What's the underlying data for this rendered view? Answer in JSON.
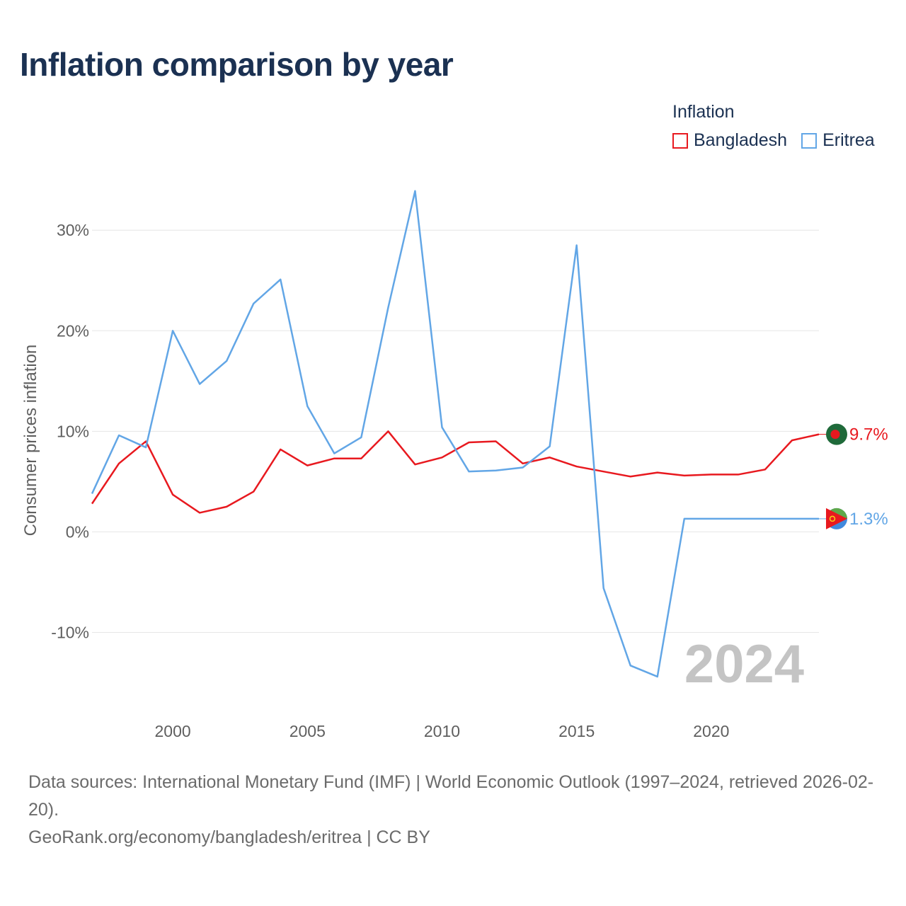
{
  "title": "Inflation comparison by year",
  "legend": {
    "title": "Inflation",
    "items": [
      {
        "label": "Bangladesh",
        "color": "#e8191f"
      },
      {
        "label": "Eritrea",
        "color": "#62a6e6"
      }
    ]
  },
  "footer": {
    "sources": "Data sources: International Monetary Fund (IMF) | World Economic Outlook (1997–2024, retrieved 2026-02-20).",
    "credit": "GeoRank.org/economy/bangladesh/eritrea | CC BY"
  },
  "chart_data": {
    "type": "line",
    "title": "Inflation comparison by year",
    "xlabel": "",
    "ylabel": "Consumer prices inflation",
    "year_label": "2024",
    "xlim": [
      1997,
      2024
    ],
    "ylim": [
      -17.5,
      36
    ],
    "x_ticks": [
      2000,
      2005,
      2010,
      2015,
      2020
    ],
    "y_ticks": [
      {
        "value": -10,
        "label": "-10%"
      },
      {
        "value": 0,
        "label": "0%"
      },
      {
        "value": 10,
        "label": "10%"
      },
      {
        "value": 20,
        "label": "20%"
      },
      {
        "value": 30,
        "label": "30%"
      }
    ],
    "x": [
      1997,
      1998,
      1999,
      2000,
      2001,
      2002,
      2003,
      2004,
      2005,
      2006,
      2007,
      2008,
      2009,
      2010,
      2011,
      2012,
      2013,
      2014,
      2015,
      2016,
      2017,
      2018,
      2019,
      2020,
      2021,
      2022,
      2023,
      2024
    ],
    "series": [
      {
        "name": "Bangladesh",
        "color": "#e8191f",
        "end_label": "9.7%",
        "values": [
          2.8,
          6.8,
          9.0,
          3.7,
          1.9,
          2.5,
          4.0,
          8.2,
          6.6,
          7.3,
          7.3,
          10.0,
          6.7,
          7.4,
          8.9,
          9.0,
          6.8,
          7.4,
          6.5,
          6.0,
          5.5,
          5.9,
          5.6,
          5.7,
          5.7,
          6.2,
          9.1,
          9.7
        ]
      },
      {
        "name": "Eritrea",
        "color": "#62a6e6",
        "end_label": "1.3%",
        "values": [
          3.8,
          9.6,
          8.4,
          20.0,
          14.7,
          17.0,
          22.7,
          25.1,
          12.5,
          7.8,
          9.4,
          22.3,
          33.9,
          10.4,
          6.0,
          6.1,
          6.4,
          8.5,
          28.5,
          -5.6,
          -13.3,
          -14.4,
          1.3,
          1.3,
          1.3,
          1.3,
          1.3,
          1.3
        ]
      }
    ]
  }
}
